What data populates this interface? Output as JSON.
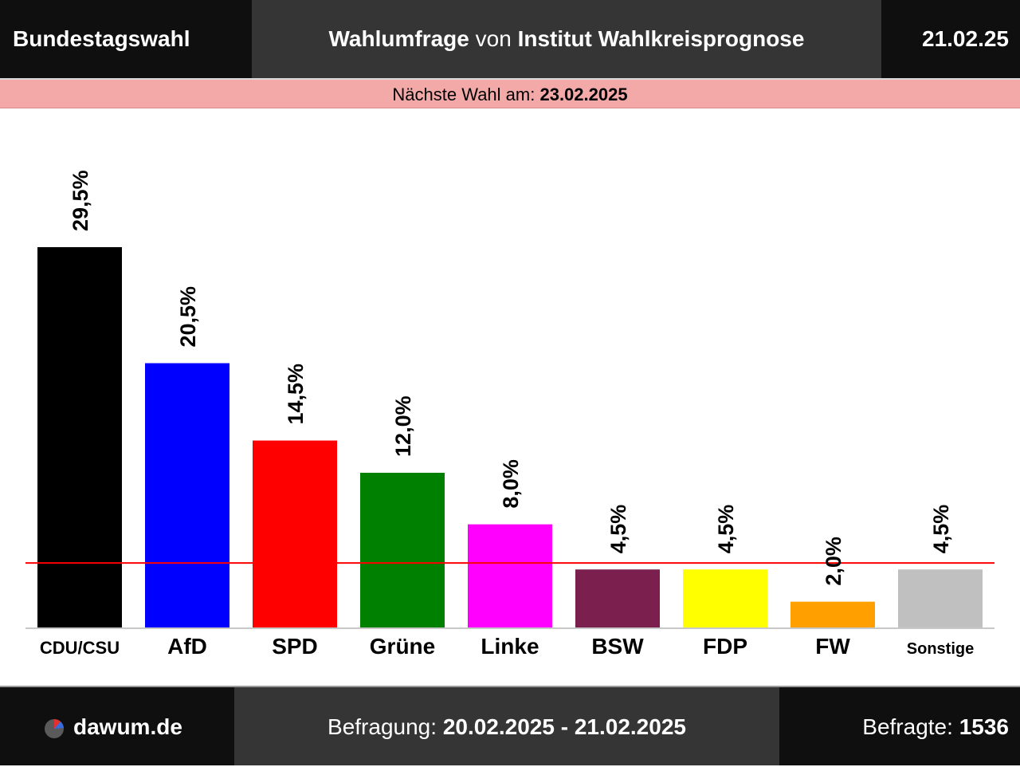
{
  "header": {
    "title": "Bundestagswahl",
    "subtitle_part1": "Wahlumfrage",
    "subtitle_part2": "von",
    "subtitle_part3": "Institut Wahlkreisprognose",
    "date": "21.02.25"
  },
  "next_election": {
    "label": "Nächste Wahl am:",
    "date": "23.02.2025"
  },
  "footer": {
    "brand": "dawum.de",
    "brand_icon": "dawum-logo-icon",
    "survey_label": "Befragung:",
    "survey_period": "20.02.2025 - 21.02.2025",
    "respondents_label": "Befragte:",
    "respondents": "1536"
  },
  "chart_data": {
    "type": "bar",
    "categories": [
      "CDU/CSU",
      "AfD",
      "SPD",
      "Grüne",
      "Linke",
      "BSW",
      "FDP",
      "FW",
      "Sonstige"
    ],
    "values": [
      29.5,
      20.5,
      14.5,
      12.0,
      8.0,
      4.5,
      4.5,
      2.0,
      4.5
    ],
    "value_labels": [
      "29,5%",
      "20,5%",
      "14,5%",
      "12,0%",
      "8,0%",
      "4,5%",
      "4,5%",
      "2,0%",
      "4,5%"
    ],
    "colors": [
      "#000000",
      "#0000ff",
      "#ff0000",
      "#008000",
      "#ff00ff",
      "#7a1f4e",
      "#ffff00",
      "#ffa000",
      "#c0c0c0"
    ],
    "threshold": 5,
    "threshold_color": "#ff0000",
    "ylim": [
      0,
      30
    ],
    "grid": false,
    "legend": "none"
  }
}
